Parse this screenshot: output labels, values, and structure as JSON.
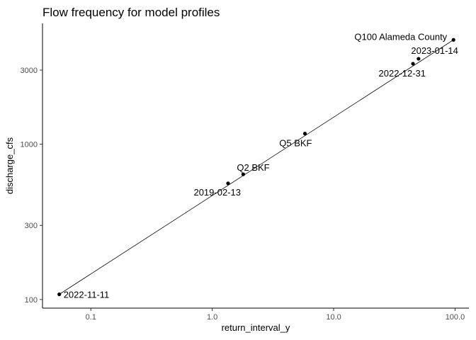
{
  "chart_data": {
    "type": "scatter",
    "title": "Flow frequency for model profiles",
    "xlabel": "return_interval_y",
    "ylabel": "discharge_cfs",
    "x_scale": "log10",
    "y_scale": "log10",
    "xlim": [
      0.04,
      130
    ],
    "ylim": [
      88,
      6000
    ],
    "x_ticks": [
      0.1,
      1.0,
      10.0,
      100.0
    ],
    "x_tick_labels": [
      "0.1",
      "1.0",
      "10.0",
      "100.0"
    ],
    "y_ticks": [
      100,
      300,
      1000,
      3000
    ],
    "y_tick_labels": [
      "100",
      "300",
      "1000",
      "3000"
    ],
    "grid": false,
    "points": [
      {
        "label": "2022-11-11",
        "x": 0.055,
        "y": 108
      },
      {
        "label": "2019-02-13",
        "x": 1.35,
        "y": 560
      },
      {
        "label": "Q2 BKF",
        "x": 1.8,
        "y": 640
      },
      {
        "label": "Q5 BKF",
        "x": 5.8,
        "y": 1170
      },
      {
        "label": "2022-12-31",
        "x": 45,
        "y": 3300
      },
      {
        "label": "2023-01-14",
        "x": 50,
        "y": 3550
      },
      {
        "label": "Q100 Alameda County",
        "x": 97,
        "y": 4700
      }
    ],
    "trend_line": {
      "from": {
        "x": 0.055,
        "y": 108
      },
      "to": {
        "x": 97,
        "y": 4700
      }
    }
  }
}
